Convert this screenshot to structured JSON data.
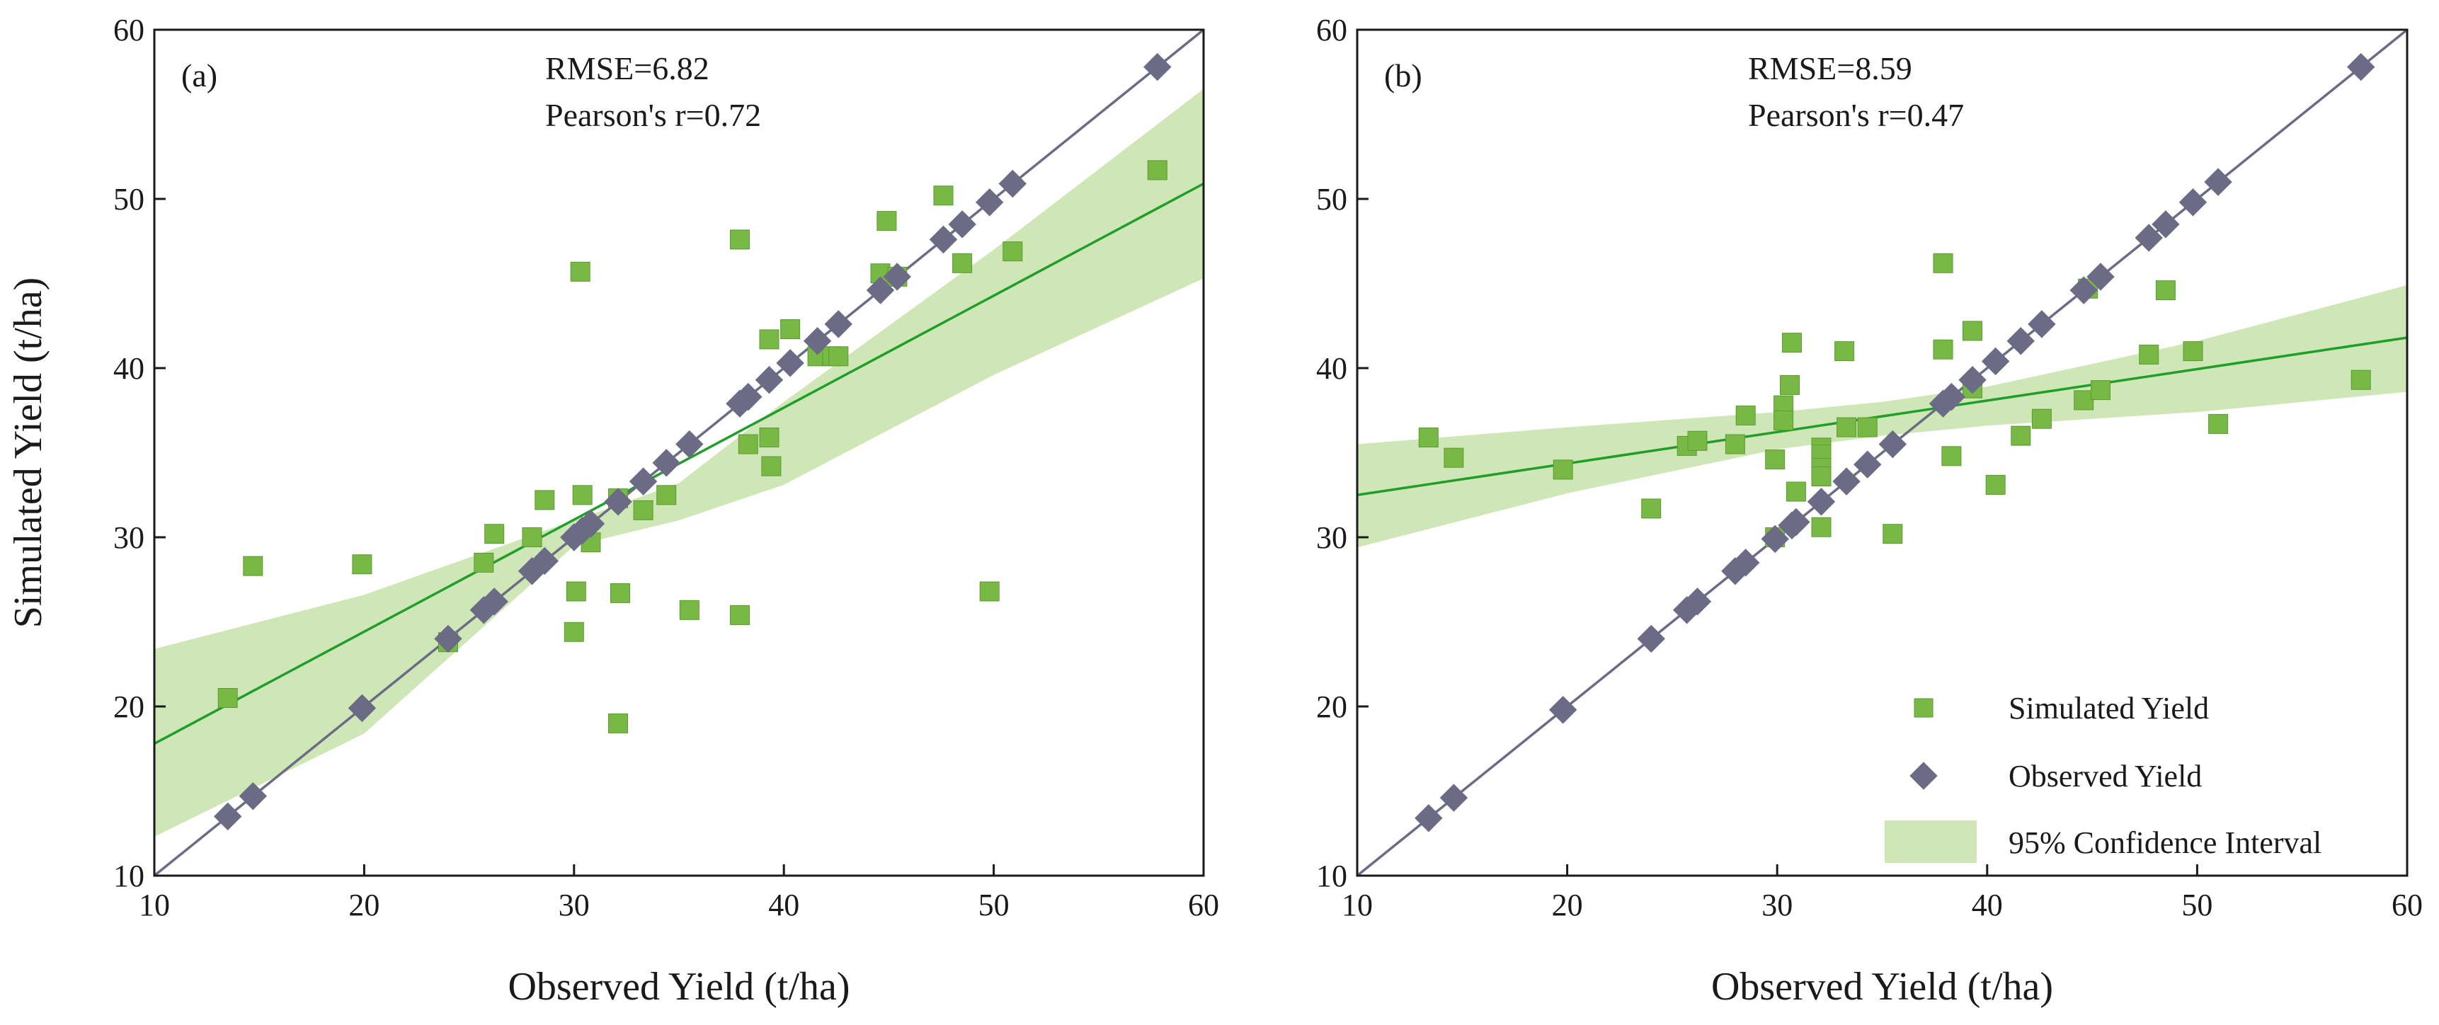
{
  "colors": {
    "simulated": "#77b944",
    "simulated_edge": "#5e9a33",
    "observed": "#6b6b86",
    "fit_line": "#1f9e2a",
    "ci_band": "#cfe6b6",
    "one_to_one": "#6b6b86",
    "axis": "#1a1a1a"
  },
  "chart_data": [
    {
      "type": "scatter",
      "panel_label": "(a)",
      "stats": {
        "rmse": "RMSE=6.82",
        "pearson": "Pearson's r=0.72"
      },
      "xlabel": "Observed Yield (t/ha)",
      "ylabel": "Simulated Yield (t/ha)",
      "xlim": [
        10,
        60
      ],
      "ylim": [
        10,
        60
      ],
      "xticks": [
        10,
        20,
        30,
        40,
        50,
        60
      ],
      "yticks": [
        10,
        20,
        30,
        40,
        50,
        60
      ],
      "grid": false,
      "series": [
        {
          "name": "Simulated Yield",
          "marker": "square",
          "points": [
            [
              13.5,
              20.5
            ],
            [
              14.7,
              28.3
            ],
            [
              19.9,
              28.4
            ],
            [
              24.0,
              23.8
            ],
            [
              25.7,
              28.5
            ],
            [
              26.2,
              30.2
            ],
            [
              28.0,
              30.0
            ],
            [
              28.6,
              32.2
            ],
            [
              30.0,
              24.4
            ],
            [
              30.1,
              26.8
            ],
            [
              30.4,
              32.5
            ],
            [
              30.3,
              45.7
            ],
            [
              30.8,
              29.7
            ],
            [
              32.1,
              19.0
            ],
            [
              32.2,
              26.7
            ],
            [
              32.1,
              32.3
            ],
            [
              33.3,
              31.6
            ],
            [
              34.4,
              32.5
            ],
            [
              35.5,
              25.7
            ],
            [
              37.9,
              25.4
            ],
            [
              37.9,
              47.6
            ],
            [
              38.3,
              35.5
            ],
            [
              39.3,
              35.9
            ],
            [
              39.4,
              34.2
            ],
            [
              39.3,
              41.7
            ],
            [
              40.3,
              42.3
            ],
            [
              41.6,
              40.7
            ],
            [
              42.3,
              40.7
            ],
            [
              42.6,
              40.7
            ],
            [
              44.6,
              45.6
            ],
            [
              44.9,
              48.7
            ],
            [
              45.4,
              45.4
            ],
            [
              47.6,
              50.2
            ],
            [
              48.5,
              46.2
            ],
            [
              49.8,
              26.8
            ],
            [
              50.9,
              46.9
            ],
            [
              57.8,
              51.7
            ]
          ]
        },
        {
          "name": "Observed Yield",
          "marker": "diamond",
          "points": [
            [
              13.5,
              13.5
            ],
            [
              14.7,
              14.7
            ],
            [
              19.9,
              19.9
            ],
            [
              24.0,
              24.0
            ],
            [
              25.7,
              25.7
            ],
            [
              26.2,
              26.2
            ],
            [
              28.0,
              28.0
            ],
            [
              28.6,
              28.6
            ],
            [
              30.0,
              30.0
            ],
            [
              30.4,
              30.4
            ],
            [
              30.8,
              30.8
            ],
            [
              32.1,
              32.1
            ],
            [
              33.3,
              33.3
            ],
            [
              34.4,
              34.4
            ],
            [
              35.5,
              35.5
            ],
            [
              37.9,
              37.9
            ],
            [
              38.3,
              38.3
            ],
            [
              39.3,
              39.3
            ],
            [
              40.3,
              40.3
            ],
            [
              41.6,
              41.6
            ],
            [
              42.6,
              42.6
            ],
            [
              44.6,
              44.6
            ],
            [
              45.4,
              45.4
            ],
            [
              47.6,
              47.6
            ],
            [
              48.5,
              48.5
            ],
            [
              49.8,
              49.8
            ],
            [
              50.9,
              50.9
            ],
            [
              57.8,
              57.8
            ]
          ]
        }
      ],
      "fit_line": {
        "x": [
          10,
          60
        ],
        "y": [
          17.8,
          50.9
        ]
      },
      "confidence_band": {
        "x": [
          10,
          20,
          30,
          35,
          40,
          50,
          60
        ],
        "lower": [
          12.3,
          18.4,
          29.5,
          31.0,
          33.1,
          39.6,
          45.3
        ],
        "upper": [
          23.4,
          26.6,
          31.0,
          33.2,
          38.0,
          47.0,
          56.5
        ]
      },
      "one_to_one_line": {
        "x": [
          10,
          60
        ],
        "y": [
          10,
          60
        ]
      }
    },
    {
      "type": "scatter",
      "panel_label": "(b)",
      "stats": {
        "rmse": "RMSE=8.59",
        "pearson": "Pearson's r=0.47"
      },
      "xlabel": "Observed Yield (t/ha)",
      "ylabel": "",
      "xlim": [
        10,
        60
      ],
      "ylim": [
        10,
        60
      ],
      "xticks": [
        10,
        20,
        30,
        40,
        50,
        60
      ],
      "yticks": [
        10,
        20,
        30,
        40,
        50,
        60
      ],
      "grid": false,
      "legend": {
        "position": "bottom-right",
        "entries": [
          "Simulated Yield",
          "Observed Yield",
          "95% Confidence Interval"
        ]
      },
      "series": [
        {
          "name": "Simulated Yield",
          "marker": "square",
          "points": [
            [
              13.4,
              35.9
            ],
            [
              14.6,
              34.7
            ],
            [
              19.8,
              34.0
            ],
            [
              24.0,
              31.7
            ],
            [
              25.7,
              35.4
            ],
            [
              26.2,
              35.7
            ],
            [
              28.0,
              35.5
            ],
            [
              28.5,
              37.2
            ],
            [
              29.9,
              34.6
            ],
            [
              29.9,
              30.0
            ],
            [
              30.3,
              37.8
            ],
            [
              30.3,
              36.9
            ],
            [
              30.6,
              39.0
            ],
            [
              30.7,
              41.5
            ],
            [
              30.9,
              32.7
            ],
            [
              32.1,
              30.6
            ],
            [
              32.1,
              35.3
            ],
            [
              32.1,
              34.9
            ],
            [
              32.1,
              34.1
            ],
            [
              32.1,
              33.6
            ],
            [
              33.2,
              41.0
            ],
            [
              33.3,
              36.5
            ],
            [
              34.3,
              36.5
            ],
            [
              35.5,
              30.2
            ],
            [
              37.9,
              41.1
            ],
            [
              37.9,
              46.2
            ],
            [
              38.3,
              34.8
            ],
            [
              39.3,
              38.8
            ],
            [
              39.3,
              42.2
            ],
            [
              40.4,
              33.1
            ],
            [
              41.6,
              36.0
            ],
            [
              42.6,
              37.0
            ],
            [
              44.6,
              38.1
            ],
            [
              44.8,
              44.7
            ],
            [
              45.4,
              38.7
            ],
            [
              47.7,
              40.8
            ],
            [
              48.5,
              44.6
            ],
            [
              49.8,
              41.0
            ],
            [
              51.0,
              36.7
            ],
            [
              57.8,
              39.3
            ]
          ]
        },
        {
          "name": "Observed Yield",
          "marker": "diamond",
          "points": [
            [
              13.4,
              13.4
            ],
            [
              14.6,
              14.6
            ],
            [
              19.8,
              19.8
            ],
            [
              24.0,
              24.0
            ],
            [
              25.7,
              25.7
            ],
            [
              26.2,
              26.2
            ],
            [
              28.0,
              28.0
            ],
            [
              28.5,
              28.5
            ],
            [
              29.9,
              29.9
            ],
            [
              30.7,
              30.7
            ],
            [
              30.9,
              30.9
            ],
            [
              32.1,
              32.1
            ],
            [
              33.3,
              33.3
            ],
            [
              34.3,
              34.3
            ],
            [
              35.5,
              35.5
            ],
            [
              37.9,
              37.9
            ],
            [
              38.3,
              38.3
            ],
            [
              39.3,
              39.3
            ],
            [
              40.4,
              40.4
            ],
            [
              41.6,
              41.6
            ],
            [
              42.6,
              42.6
            ],
            [
              44.6,
              44.6
            ],
            [
              45.4,
              45.4
            ],
            [
              47.7,
              47.7
            ],
            [
              48.5,
              48.5
            ],
            [
              49.8,
              49.8
            ],
            [
              51.0,
              51.0
            ],
            [
              57.8,
              57.8
            ]
          ]
        }
      ],
      "fit_line": {
        "x": [
          10,
          60
        ],
        "y": [
          32.5,
          41.8
        ]
      },
      "confidence_band": {
        "x": [
          10,
          20,
          30,
          35,
          40,
          50,
          60
        ],
        "lower": [
          29.4,
          32.6,
          35.2,
          36.0,
          36.6,
          37.4,
          38.6
        ],
        "upper": [
          35.5,
          36.5,
          37.4,
          38.0,
          38.9,
          41.6,
          44.9
        ]
      },
      "one_to_one_line": {
        "x": [
          10,
          60
        ],
        "y": [
          10,
          60
        ]
      }
    }
  ]
}
